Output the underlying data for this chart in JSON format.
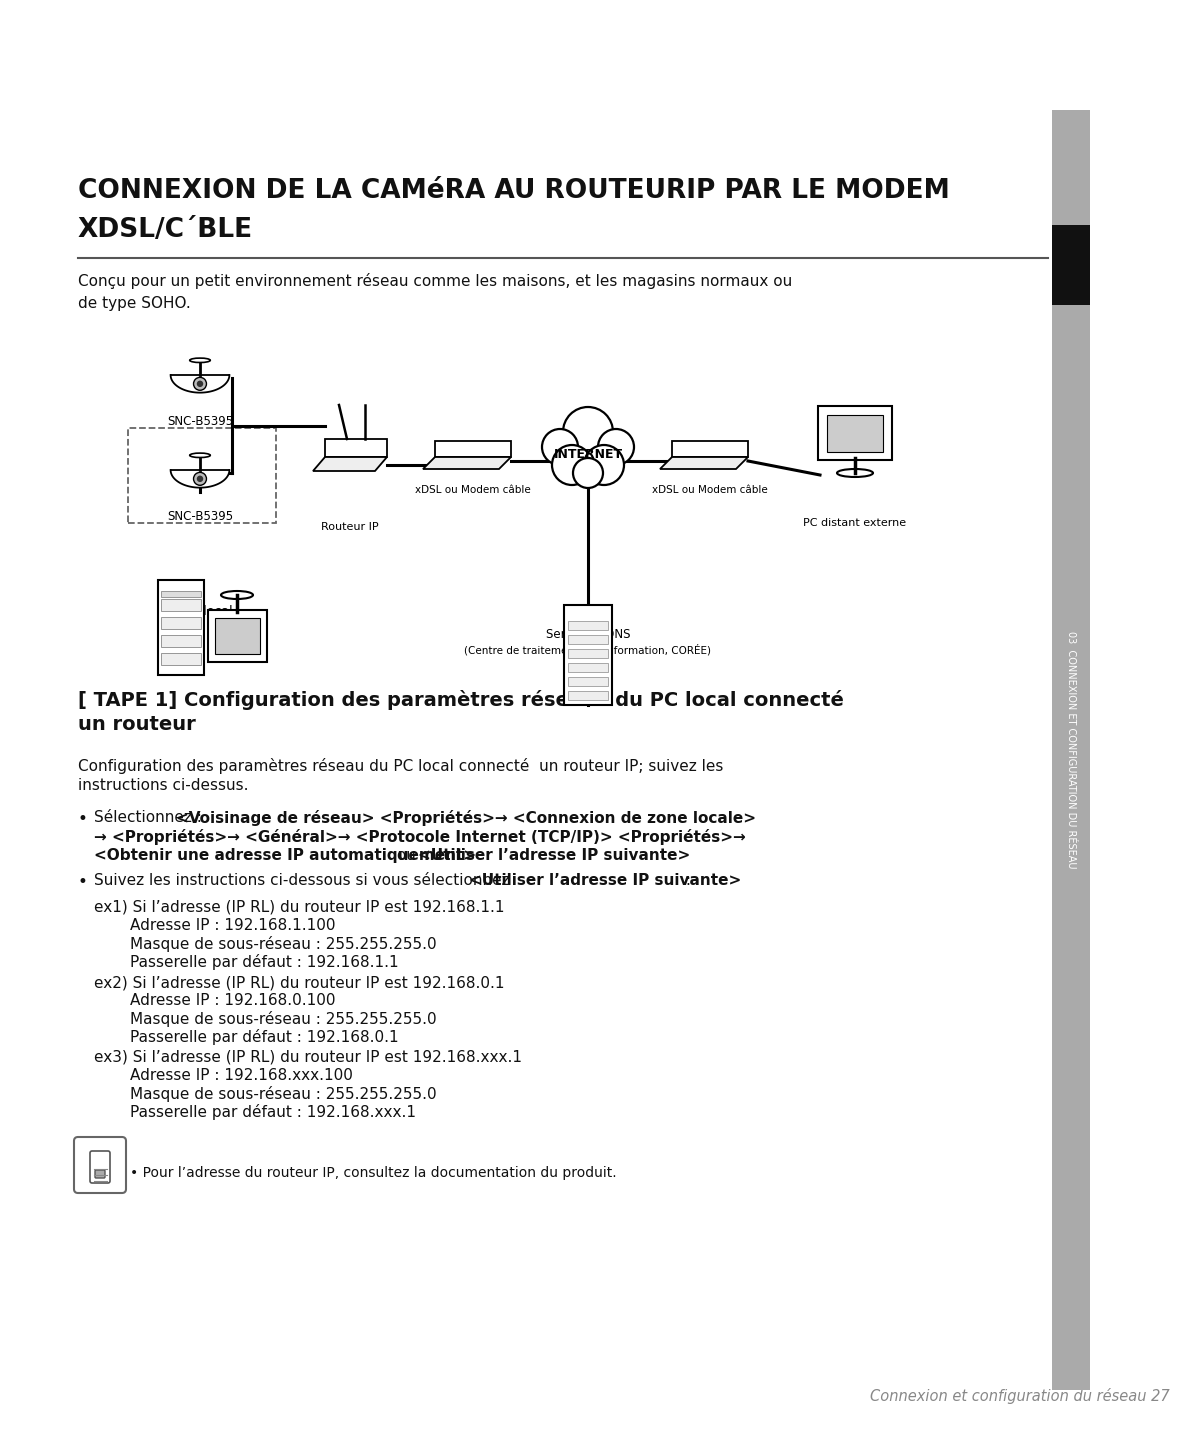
{
  "bg_color": "#ffffff",
  "title_line1": "CONNEXION DE LA CAMéRA AU ROUTEURIP PAR LE MODEM",
  "title_line2": "XDSL/C´BLE",
  "intro_text": "Conçu pour un petit environnement réseau comme les maisons, et les magasins normaux ou\nde type SOHO.",
  "section_title_l1": "[ TAPE 1] Configuration des paramètres réseaux du PC local connecté",
  "section_title_l2": "un routeur",
  "section_intro_l1": "Configuration des paramètres réseau du PC local connecté  un routeur IP; suivez les",
  "section_intro_l2": "instructions ci-dessus.",
  "b1_plain": "Sélectionnez : ",
  "b1_bold_l1": "<Voisinage de réseau> <Propriétés>→ <Connexion de zone locale>",
  "b1_bold_l2": "→ <Propriétés>→ <Général>→ <Protocole Internet (TCP/IP)> <Propriétés>→",
  "b1_bold_l3a": "<Obtenir une adresse IP automatiquement>",
  "b1_or": " ou ",
  "b1_bold_l3b": "<Utiliser l’adresse IP suivante>",
  "b2_plain": "Suivez les instructions ci-dessous si vous sélectionnez ",
  "b2_bold": "<Utiliser l’adresse IP suivante>",
  "b2_end": " :",
  "ex1_title": "ex1) Si l’adresse (IP RL) du routeur IP est 192.168.1.1",
  "ex1_l1": "Adresse IP : 192.168.1.100",
  "ex1_l2": "Masque de sous-réseau : 255.255.255.0",
  "ex1_l3": "Passerelle par défaut : 192.168.1.1",
  "ex2_title": "ex2) Si l’adresse (IP RL) du routeur IP est 192.168.0.1",
  "ex2_l1": "Adresse IP : 192.168.0.100",
  "ex2_l2": "Masque de sous-réseau : 255.255.255.0",
  "ex2_l3": "Passerelle par défaut : 192.168.0.1",
  "ex3_title": "ex3) Si l’adresse (IP RL) du routeur IP est 192.168.xxx.1",
  "ex3_l1": "Adresse IP : 192.168.xxx.100",
  "ex3_l2": "Masque de sous-réseau : 255.255.255.0",
  "ex3_l3": "Passerelle par défaut : 192.168.xxx.1",
  "note": "• Pour l’adresse du routeur IP, consultez la documentation du produit.",
  "footer": "Connexion et configuration du réseau 27",
  "sidebar_txt": "03  CONNEXION ET CONFIGURATION DU RÉSEAU",
  "lbl_snc1": "SNC-B5395",
  "lbl_snc2": "SNC-B5395",
  "lbl_router": "Routeur IP",
  "lbl_xdsl_l": "xDSL ou Modem câble",
  "lbl_internet": "INTERNET",
  "lbl_xdsl_r": "xDSL ou Modem câble",
  "lbl_pc_remote": "PC distant externe",
  "lbl_pc_local": "PC local",
  "lbl_ddns": "Serveur DDNS",
  "lbl_ddns_sub": "(Centre de traitement de l’information, CORÉE)"
}
